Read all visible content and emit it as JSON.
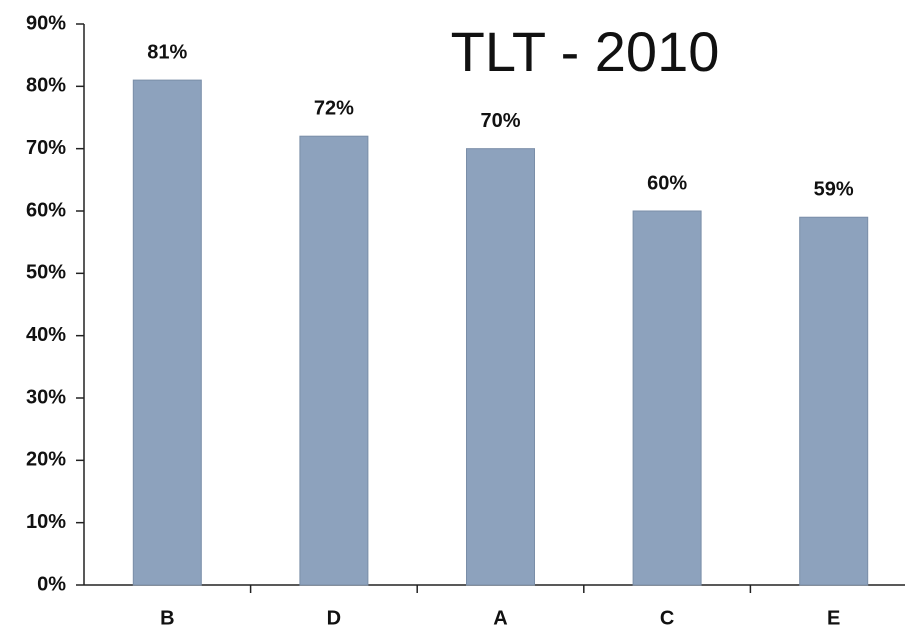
{
  "chart_data": {
    "type": "bar",
    "title": "TLT - 2010",
    "categories": [
      "B",
      "D",
      "A",
      "C",
      "E"
    ],
    "values": [
      81,
      72,
      70,
      60,
      59
    ],
    "value_labels": [
      "81%",
      "72%",
      "70%",
      "60%",
      "59%"
    ],
    "color": "#8da2bd",
    "ylim": [
      0,
      90
    ],
    "yticks": [
      {
        "value": 0,
        "label": "0%"
      },
      {
        "value": 10,
        "label": "10%"
      },
      {
        "value": 20,
        "label": "20%"
      },
      {
        "value": 30,
        "label": "30%"
      },
      {
        "value": 40,
        "label": "40%"
      },
      {
        "value": 50,
        "label": "50%"
      },
      {
        "value": 60,
        "label": "60%"
      },
      {
        "value": 70,
        "label": "70%"
      },
      {
        "value": 80,
        "label": "80%"
      },
      {
        "value": 90,
        "label": "90%"
      }
    ],
    "grid": false
  }
}
